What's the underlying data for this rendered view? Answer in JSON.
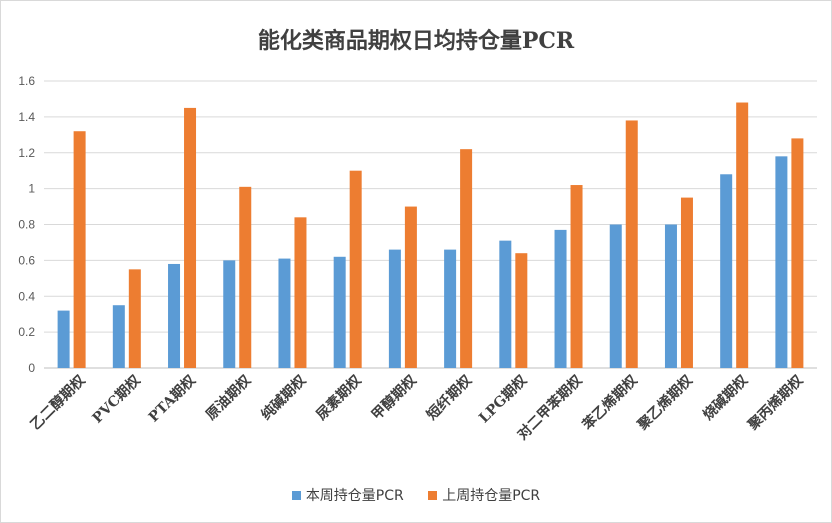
{
  "chart_data": {
    "type": "bar",
    "title": "能化类商品期权日均持仓量PCR",
    "categories": [
      "乙二醇期权",
      "PVC期权",
      "PTA期权",
      "原油期权",
      "纯碱期权",
      "尿素期权",
      "甲醇期权",
      "短纤期权",
      "LPG期权",
      "对二甲苯期权",
      "苯乙烯期权",
      "聚乙烯期权",
      "烧碱期权",
      "聚丙烯期权"
    ],
    "series": [
      {
        "name": "本周持仓量PCR",
        "color": "#5B9BD5",
        "values": [
          0.32,
          0.35,
          0.58,
          0.6,
          0.61,
          0.62,
          0.66,
          0.66,
          0.71,
          0.77,
          0.8,
          0.8,
          1.08,
          1.18
        ]
      },
      {
        "name": "上周持仓量PCR",
        "color": "#ED7D31",
        "values": [
          1.32,
          0.55,
          1.45,
          1.01,
          0.84,
          1.1,
          0.9,
          1.22,
          0.64,
          1.02,
          1.38,
          0.95,
          1.48,
          1.28
        ]
      }
    ],
    "yticks": [
      "0",
      "0.2",
      "0.4",
      "0.6",
      "0.8",
      "1",
      "1.2",
      "1.4",
      "1.6"
    ],
    "ylim": [
      0,
      1.6
    ],
    "xlabel": "",
    "ylabel": "",
    "grid": true,
    "legend_position": "bottom"
  }
}
